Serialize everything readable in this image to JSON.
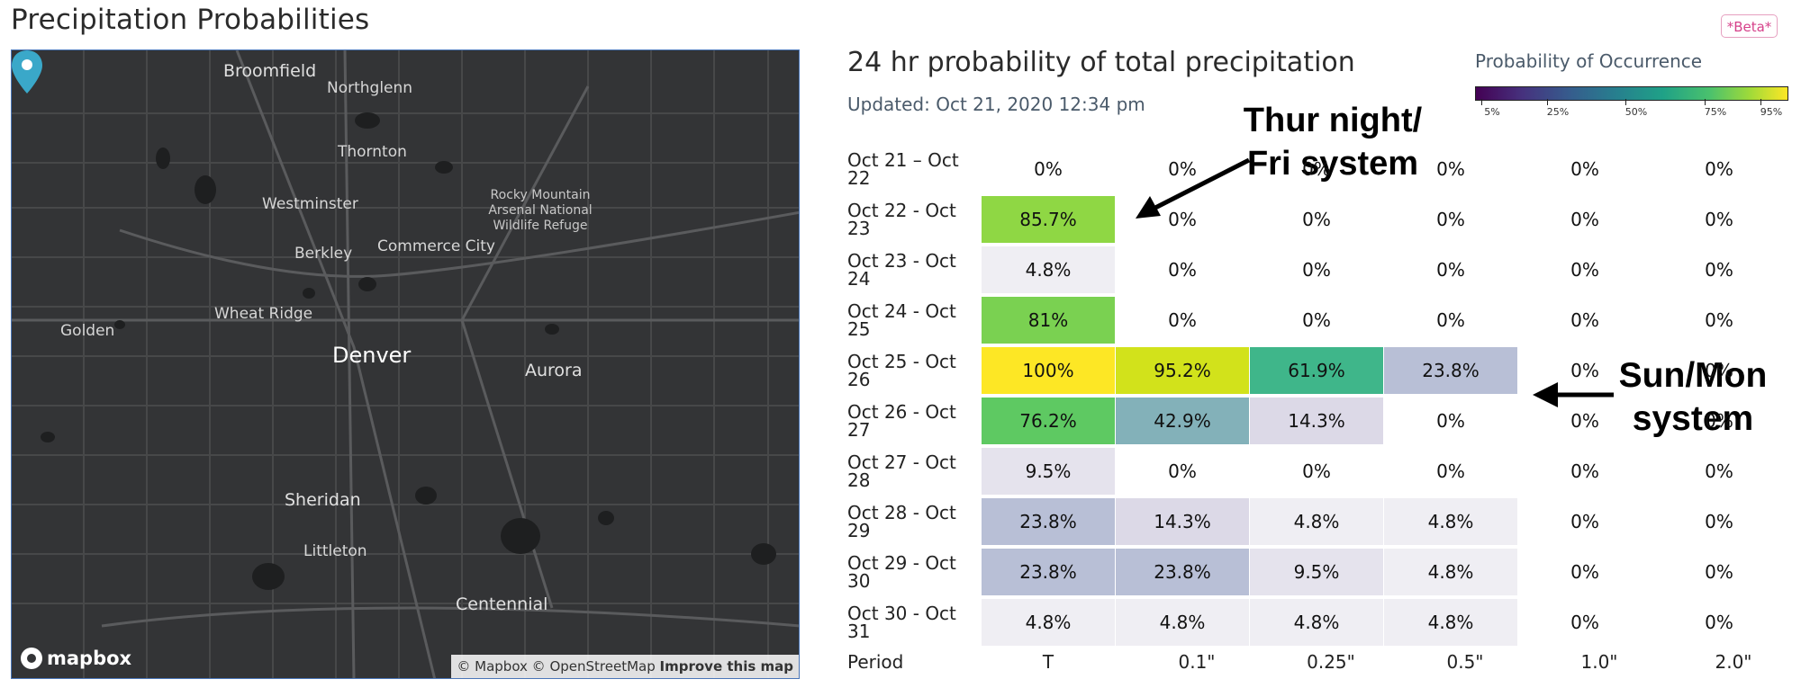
{
  "page_title": "Precipitation Probabilities",
  "beta_badge": "*Beta*",
  "map": {
    "labels": {
      "broomfield": "Broomfield",
      "northglenn": "Northglenn",
      "thornton": "Thornton",
      "westminster": "Westminster",
      "rocky_mountain": "Rocky Mountain Arsenal National Wildlife Refuge",
      "berkley": "Berkley",
      "commerce_city": "Commerce City",
      "wheat_ridge": "Wheat Ridge",
      "golden": "Golden",
      "denver": "Denver",
      "aurora": "Aurora",
      "sheridan": "Sheridan",
      "littleton": "Littleton",
      "centennial": "Centennial"
    },
    "logo_text": "mapbox",
    "attribution": "© Mapbox © OpenStreetMap",
    "improve_link": "Improve this map",
    "pin_icon": "map-pin-icon"
  },
  "panel": {
    "title": "24 hr probability of total precipitation",
    "updated": "Updated: Oct 21, 2020 12:34 pm"
  },
  "legend": {
    "title": "Probability of Occurrence",
    "ticks": [
      "5%",
      "25%",
      "50%",
      "75%",
      "95%"
    ]
  },
  "annotations": {
    "thur_line1": "Thur night/",
    "thur_line2": "Fri system",
    "sun_line1": "Sun/Mon",
    "sun_line2": "system"
  },
  "table": {
    "period_label": "Period",
    "columns": [
      "T",
      "0.1\"",
      "0.25\"",
      "0.5\"",
      "1.0\"",
      "2.0\""
    ],
    "rows": [
      {
        "label1": "Oct 21 – Oct",
        "label2": "22",
        "values": [
          "0%",
          "0%",
          "0%",
          "0%",
          "0%",
          "0%"
        ],
        "colors": [
          "",
          "",
          "",
          "",
          "",
          ""
        ]
      },
      {
        "label1": "Oct 22 - Oct",
        "label2": "23",
        "values": [
          "85.7%",
          "0%",
          "0%",
          "0%",
          "0%",
          "0%"
        ],
        "colors": [
          "#8fd744",
          "",
          "",
          "",
          "",
          ""
        ]
      },
      {
        "label1": "Oct 23 - Oct",
        "label2": "24",
        "values": [
          "4.8%",
          "0%",
          "0%",
          "0%",
          "0%",
          "0%"
        ],
        "colors": [
          "#efeef3",
          "",
          "",
          "",
          "",
          ""
        ]
      },
      {
        "label1": "Oct 24 - Oct",
        "label2": "25",
        "values": [
          "81%",
          "0%",
          "0%",
          "0%",
          "0%",
          "0%"
        ],
        "colors": [
          "#7ad151",
          "",
          "",
          "",
          "",
          ""
        ]
      },
      {
        "label1": "Oct 25 - Oct",
        "label2": "26",
        "values": [
          "100%",
          "95.2%",
          "61.9%",
          "23.8%",
          "0%",
          "0%"
        ],
        "colors": [
          "#fde725",
          "#d2e21b",
          "#3fb68a",
          "#b8bfd6",
          "",
          ""
        ]
      },
      {
        "label1": "Oct 26 - Oct",
        "label2": "27",
        "values": [
          "76.2%",
          "42.9%",
          "14.3%",
          "0%",
          "0%",
          "0%"
        ],
        "colors": [
          "#5ec962",
          "#83b1b9",
          "#dcd9e7",
          "",
          "",
          ""
        ]
      },
      {
        "label1": "Oct 27 - Oct",
        "label2": "28",
        "values": [
          "9.5%",
          "0%",
          "0%",
          "0%",
          "0%",
          "0%"
        ],
        "colors": [
          "#e5e3ed",
          "",
          "",
          "",
          "",
          ""
        ]
      },
      {
        "label1": "Oct 28 - Oct",
        "label2": "29",
        "values": [
          "23.8%",
          "14.3%",
          "4.8%",
          "4.8%",
          "0%",
          "0%"
        ],
        "colors": [
          "#b8bfd6",
          "#dcd9e7",
          "#efeef3",
          "#efeef3",
          "",
          ""
        ]
      },
      {
        "label1": "Oct 29 - Oct",
        "label2": "30",
        "values": [
          "23.8%",
          "23.8%",
          "9.5%",
          "4.8%",
          "0%",
          "0%"
        ],
        "colors": [
          "#b8bfd6",
          "#b8bfd6",
          "#e5e3ed",
          "#efeef3",
          "",
          ""
        ]
      },
      {
        "label1": "Oct 30 - Oct",
        "label2": "31",
        "values": [
          "4.8%",
          "4.8%",
          "4.8%",
          "4.8%",
          "0%",
          "0%"
        ],
        "colors": [
          "#efeef3",
          "#efeef3",
          "#efeef3",
          "#efeef3",
          "",
          ""
        ]
      }
    ]
  }
}
